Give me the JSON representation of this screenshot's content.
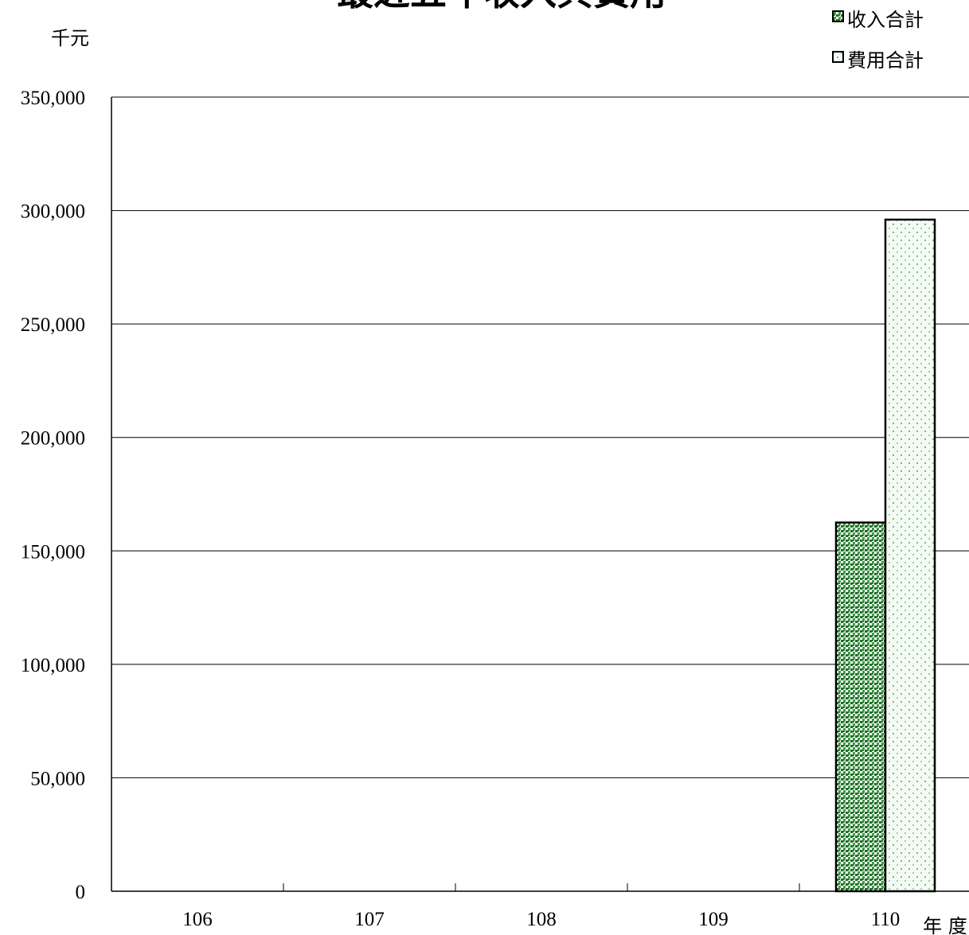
{
  "chart_data": {
    "type": "bar",
    "title": "最近五年收入與費用",
    "ylabel": "千元",
    "xlabel": "年 度",
    "categories": [
      "106",
      "107",
      "108",
      "109",
      "110"
    ],
    "ylim": [
      0,
      350000
    ],
    "y_ticks": [
      "0",
      "50,000",
      "100,000",
      "150,000",
      "200,000",
      "250,000",
      "300,000",
      "350,000"
    ],
    "y_tick_values": [
      0,
      50000,
      100000,
      150000,
      200000,
      250000,
      300000,
      350000
    ],
    "grid": true,
    "legend_position": "top-right",
    "series": [
      {
        "name": "收入合計",
        "values": [
          null,
          null,
          null,
          null,
          162500
        ],
        "color": "#2e7d32",
        "pattern": "dense green dots"
      },
      {
        "name": "費用合計",
        "values": [
          null,
          null,
          null,
          null,
          296000
        ],
        "color": "#a5d6a7",
        "pattern": "sparse light dots"
      }
    ]
  }
}
